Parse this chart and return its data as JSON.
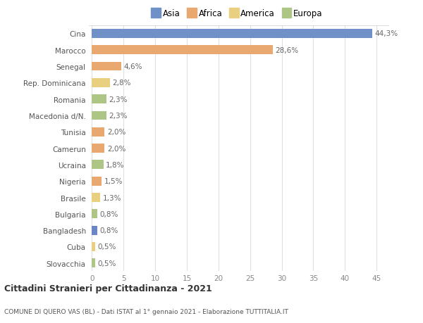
{
  "categories": [
    "Slovacchia",
    "Cuba",
    "Bangladesh",
    "Bulgaria",
    "Brasile",
    "Nigeria",
    "Ucraina",
    "Camerun",
    "Tunisia",
    "Macedonia d/N.",
    "Romania",
    "Rep. Dominicana",
    "Senegal",
    "Marocco",
    "Cina"
  ],
  "values": [
    0.5,
    0.5,
    0.8,
    0.8,
    1.3,
    1.5,
    1.8,
    2.0,
    2.0,
    2.3,
    2.3,
    2.8,
    4.6,
    28.6,
    44.3
  ],
  "labels": [
    "0,5%",
    "0,5%",
    "0,8%",
    "0,8%",
    "1,3%",
    "1,5%",
    "1,8%",
    "2,0%",
    "2,0%",
    "2,3%",
    "2,3%",
    "2,8%",
    "4,6%",
    "28,6%",
    "44,3%"
  ],
  "colors": [
    "#aec685",
    "#e8d080",
    "#6b86c4",
    "#aec685",
    "#e8d080",
    "#e8a870",
    "#aec685",
    "#e8a870",
    "#e8a870",
    "#aec685",
    "#aec685",
    "#e8d080",
    "#e8a870",
    "#e8a870",
    "#7090c8"
  ],
  "legend_labels": [
    "Asia",
    "Africa",
    "America",
    "Europa"
  ],
  "legend_colors": [
    "#7090c8",
    "#e8a870",
    "#e8d080",
    "#aec685"
  ],
  "title_main": "Cittadini Stranieri per Cittadinanza - 2021",
  "title_sub": "COMUNE DI QUERO VAS (BL) - Dati ISTAT al 1° gennaio 2021 - Elaborazione TUTTITALIA.IT",
  "xlim": [
    -0.5,
    47
  ],
  "xticks": [
    0,
    5,
    10,
    15,
    20,
    25,
    30,
    35,
    40,
    45
  ],
  "background_color": "#ffffff",
  "grid_color": "#e0e0e0",
  "bar_height": 0.55,
  "label_fontsize": 7.5,
  "tick_fontsize": 7.5,
  "ylabel_fontsize": 7.5
}
